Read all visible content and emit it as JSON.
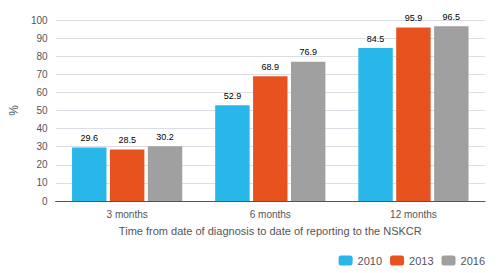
{
  "chart_data": {
    "type": "bar",
    "categories": [
      "3 months",
      "6 months",
      "12 months"
    ],
    "series": [
      {
        "name": "2010",
        "color": "#29b6e8",
        "values": [
          29.6,
          52.9,
          84.5
        ]
      },
      {
        "name": "2013",
        "color": "#e8521e",
        "values": [
          28.5,
          68.9,
          95.9
        ]
      },
      {
        "name": "2016",
        "color": "#a0a0a0",
        "values": [
          30.2,
          76.9,
          96.5
        ]
      }
    ],
    "ylabel": "%",
    "xlabel": "Time from date of diagnosis to date of reporting to the NSKCR",
    "ylim": [
      0,
      100
    ],
    "yticks": [
      0,
      10,
      20,
      30,
      40,
      50,
      60,
      70,
      80,
      90,
      100
    ],
    "grid": true,
    "legend": "lower right",
    "data_labels": true
  }
}
